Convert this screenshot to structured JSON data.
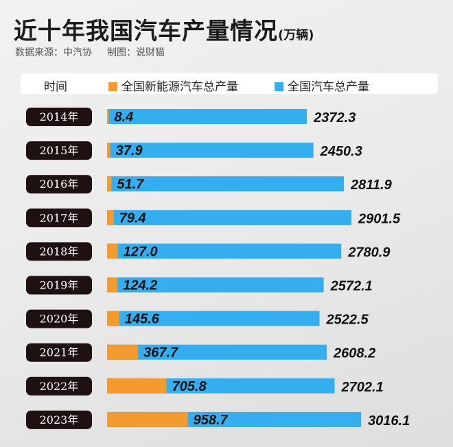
{
  "title": "近十年我国汽车产量情况",
  "title_unit": "(万辆)",
  "source": {
    "data": "数据来源：中汽协",
    "made": "制图：说财猫"
  },
  "legend": {
    "column_label": "时间",
    "nev_label": "全国新能源汽车总产量",
    "total_label": "全国汽车总产量"
  },
  "colors": {
    "nev": "#f39b2f",
    "total": "#35aef0",
    "year_bg": "#1d1111"
  },
  "chart_data": {
    "type": "bar",
    "orientation": "horizontal",
    "categories": [
      "2014年",
      "2015年",
      "2016年",
      "2017年",
      "2018年",
      "2019年",
      "2020年",
      "2021年",
      "2022年",
      "2023年"
    ],
    "series": [
      {
        "name": "全国新能源汽车总产量",
        "values": [
          8.4,
          37.9,
          51.7,
          79.4,
          127.0,
          124.2,
          145.6,
          367.7,
          705.8,
          958.7
        ],
        "labels": [
          "8.4",
          "37.9",
          "51.7",
          "79.4",
          "127.0",
          "124.2",
          "145.6",
          "367.7",
          "705.8",
          "958.7"
        ]
      },
      {
        "name": "全国汽车总产量",
        "values": [
          2372.3,
          2450.3,
          2811.9,
          2901.5,
          2780.9,
          2572.1,
          2522.5,
          2608.2,
          2702.1,
          3016.1
        ],
        "labels": [
          "2372.3",
          "2450.3",
          "2811.9",
          "2901.5",
          "2780.9",
          "2572.1",
          "2522.5",
          "2608.2",
          "2702.1",
          "3016.1"
        ]
      }
    ],
    "overlay": true,
    "grid": false
  }
}
